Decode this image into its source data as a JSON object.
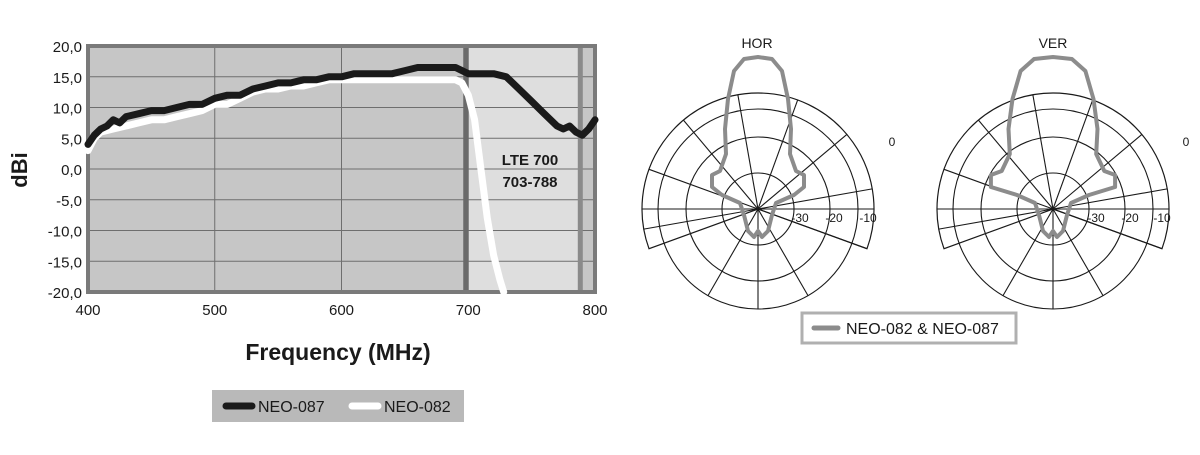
{
  "chart_data": [
    {
      "type": "line",
      "title": "",
      "xlabel": "Frequency (MHz)",
      "ylabel": "dBi",
      "xlim": [
        400,
        800
      ],
      "ylim": [
        -20,
        20
      ],
      "xticks": [
        "400",
        "500",
        "600",
        "700",
        "800"
      ],
      "yticks": [
        "20,0",
        "15,0",
        "10,0",
        "5,0",
        "0,0",
        "-5,0",
        "-10,0",
        "-15,0",
        "-20,0"
      ],
      "grid": true,
      "band": {
        "label_line1": "LTE 700",
        "label_line2": "703-788",
        "from": 700,
        "to": 788
      },
      "legend_position": "bottom",
      "series": [
        {
          "name": "NEO-087",
          "color": "#1a1a1a",
          "x": [
            400,
            405,
            410,
            415,
            420,
            425,
            430,
            440,
            450,
            460,
            470,
            480,
            490,
            500,
            510,
            520,
            530,
            540,
            550,
            560,
            570,
            580,
            590,
            600,
            610,
            620,
            630,
            640,
            650,
            660,
            670,
            680,
            690,
            700,
            710,
            720,
            730,
            740,
            750,
            760,
            770,
            775,
            780,
            785,
            790,
            795,
            800
          ],
          "values": [
            4,
            5.5,
            6.5,
            7,
            8,
            7.5,
            8.5,
            9,
            9.5,
            9.5,
            10,
            10.5,
            10.5,
            11.5,
            12,
            12,
            13,
            13.5,
            14,
            14,
            14.5,
            14.5,
            15,
            15,
            15.5,
            15.5,
            15.5,
            15.5,
            16,
            16.5,
            16.5,
            16.5,
            16.5,
            15.5,
            15.5,
            15.5,
            15,
            13,
            11,
            9,
            7,
            6.5,
            7,
            6,
            5.5,
            6.5,
            8
          ]
        },
        {
          "name": "NEO-082",
          "color": "#ffffff",
          "x": [
            400,
            405,
            410,
            420,
            430,
            440,
            450,
            460,
            470,
            480,
            490,
            500,
            510,
            520,
            530,
            540,
            550,
            560,
            570,
            580,
            590,
            600,
            610,
            620,
            630,
            640,
            650,
            660,
            670,
            680,
            690,
            695,
            700,
            705,
            710,
            715,
            720,
            725,
            728
          ],
          "values": [
            3,
            5,
            6,
            6.5,
            7,
            7.5,
            8,
            8,
            8.5,
            9,
            9.5,
            10.5,
            10.5,
            11.5,
            12.5,
            13,
            13,
            13.5,
            13.5,
            14,
            14.5,
            14.5,
            14.5,
            14.5,
            14.5,
            14.5,
            14.5,
            14.5,
            14.5,
            14.5,
            14.5,
            14,
            12,
            8,
            0,
            -8,
            -14,
            -18,
            -20
          ]
        }
      ]
    },
    {
      "type": "polar",
      "panels": [
        {
          "title": "HOR",
          "rings": [
            "-30",
            "-20",
            "-10",
            "0"
          ]
        },
        {
          "title": "VER",
          "rings": [
            "-30",
            "-20",
            "-10",
            "0"
          ]
        }
      ],
      "series": [
        {
          "name": "NEO-082 & NEO-087",
          "color": "#8c8c8c"
        }
      ],
      "legend_position": "bottom"
    }
  ],
  "legend_left": {
    "items": [
      "NEO-087",
      "NEO-082"
    ]
  },
  "legend_right": {
    "items": [
      "NEO-082 & NEO-087"
    ]
  }
}
